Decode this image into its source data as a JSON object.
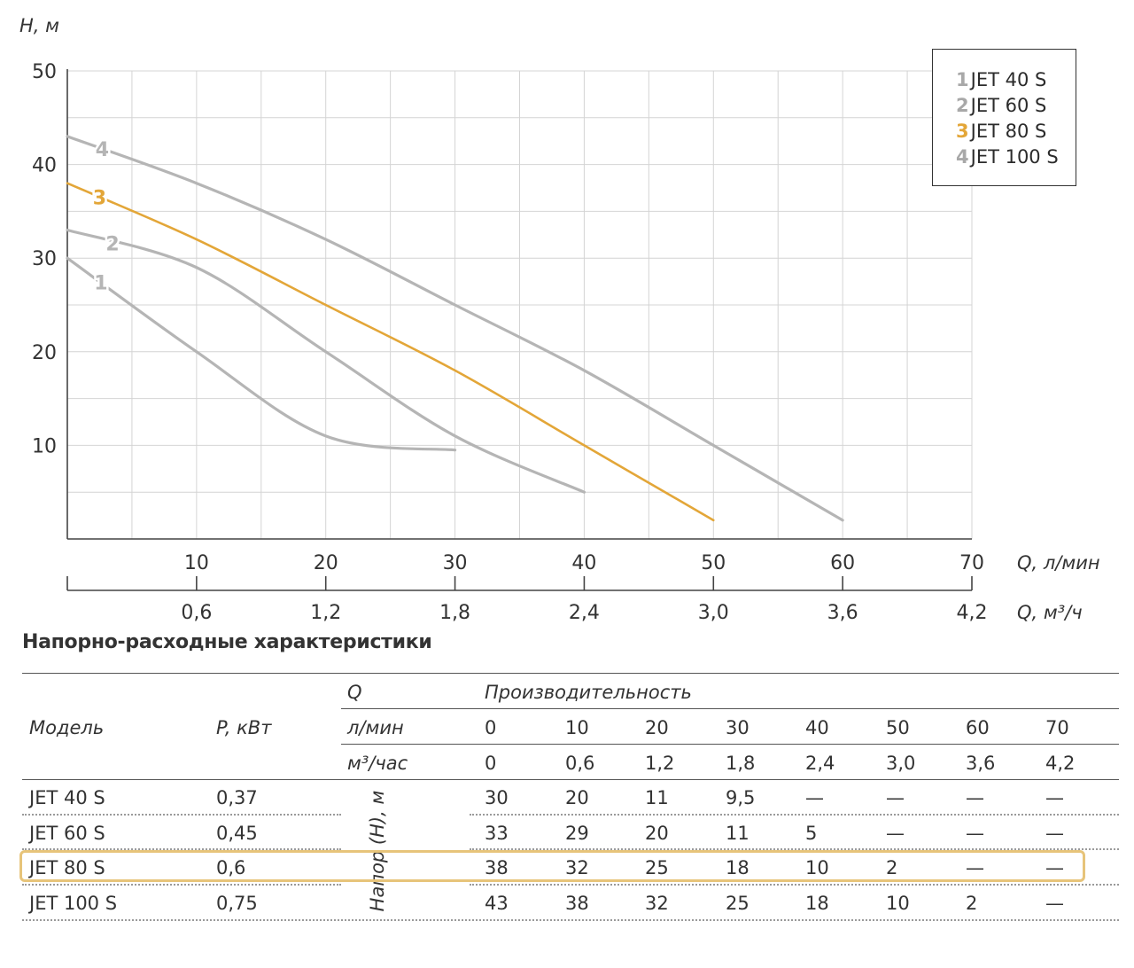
{
  "chart_data": {
    "type": "line",
    "y_axis": {
      "label": "H, м",
      "ticks": [
        "10",
        "20",
        "30",
        "40",
        "50"
      ],
      "ylim": [
        0,
        50
      ]
    },
    "x_axis_primary": {
      "label": "Q, л/мин",
      "ticks": [
        "10",
        "20",
        "30",
        "40",
        "50",
        "60",
        "70"
      ],
      "xlim": [
        0,
        70
      ]
    },
    "x_axis_secondary": {
      "label": "Q, м³/ч",
      "ticks": [
        "0,6",
        "1,2",
        "1,8",
        "2,4",
        "3,0",
        "3,6",
        "4,2"
      ]
    },
    "grid": true,
    "legend_position": "top-right",
    "series": [
      {
        "name": "JET 40 S",
        "label": "1",
        "color": "#b5b5b5",
        "x": [
          0,
          10,
          20,
          30
        ],
        "y": [
          30,
          20,
          11,
          9.5
        ]
      },
      {
        "name": "JET 60 S",
        "label": "2",
        "color": "#b5b5b5",
        "x": [
          0,
          10,
          20,
          30,
          40
        ],
        "y": [
          33,
          29,
          20,
          11,
          5
        ]
      },
      {
        "name": "JET 80 S",
        "label": "3",
        "color": "#e3a638",
        "x": [
          0,
          10,
          20,
          30,
          40,
          50
        ],
        "y": [
          38,
          32,
          25,
          18,
          10,
          2
        ]
      },
      {
        "name": "JET 100 S",
        "label": "4",
        "color": "#b5b5b5",
        "x": [
          0,
          10,
          20,
          30,
          40,
          50,
          60
        ],
        "y": [
          43,
          38,
          32,
          25,
          18,
          10,
          2
        ]
      }
    ]
  },
  "legend": [
    {
      "num": "1",
      "name": "JET 40 S"
    },
    {
      "num": "2",
      "name": "JET 60 S"
    },
    {
      "num": "3",
      "name": "JET 80 S"
    },
    {
      "num": "4",
      "name": "JET 100 S"
    }
  ],
  "table": {
    "title": "Напорно-расходные характеристики",
    "model_header": "Модель",
    "power_header": "P, кВт",
    "q_header": "Q",
    "capacity_header": "Производительность",
    "lmin_label": "л/мин",
    "m3h_label": "м³/час",
    "head_label": "Напор (H), м",
    "lmin_values": [
      "0",
      "10",
      "20",
      "30",
      "40",
      "50",
      "60",
      "70"
    ],
    "m3h_values": [
      "0",
      "0,6",
      "1,2",
      "1,8",
      "2,4",
      "3,0",
      "3,6",
      "4,2"
    ],
    "rows": [
      {
        "model": "JET 40 S",
        "power": "0,37",
        "values": [
          "30",
          "20",
          "11",
          "9,5",
          "—",
          "—",
          "—",
          "—"
        ]
      },
      {
        "model": "JET 60 S",
        "power": "0,45",
        "values": [
          "33",
          "29",
          "20",
          "11",
          "5",
          "—",
          "—",
          "—"
        ]
      },
      {
        "model": "JET 80 S",
        "power": "0,6",
        "values": [
          "38",
          "32",
          "25",
          "18",
          "10",
          "2",
          "—",
          "—"
        ]
      },
      {
        "model": "JET 100 S",
        "power": "0,75",
        "values": [
          "43",
          "38",
          "32",
          "25",
          "18",
          "10",
          "2",
          "—"
        ]
      }
    ]
  }
}
